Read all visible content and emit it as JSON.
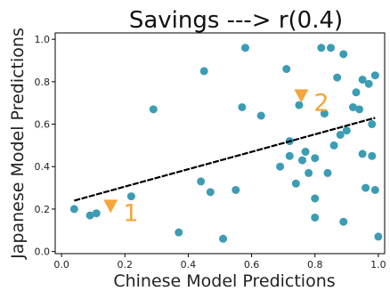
{
  "chart_data": {
    "type": "scatter",
    "title": "Savings ---> r(0.4)",
    "xlabel": "Chinese Model Predictions",
    "ylabel": "Japanese Model Predictions",
    "xlim": [
      -0.02,
      1.02
    ],
    "ylim": [
      -0.01,
      1.03
    ],
    "xticks": [
      "0.0",
      "0.2",
      "0.4",
      "0.6",
      "0.8",
      "1.0"
    ],
    "yticks": [
      "0.0",
      "0.2",
      "0.4",
      "0.6",
      "0.8",
      "1.0"
    ],
    "grid": false,
    "point_color": "#3c9cb4",
    "trend_color": "#000000",
    "annotation_color": "#f5a53a",
    "points": [
      [
        0.04,
        0.2
      ],
      [
        0.09,
        0.17
      ],
      [
        0.11,
        0.18
      ],
      [
        0.22,
        0.26
      ],
      [
        0.29,
        0.67
      ],
      [
        0.37,
        0.09
      ],
      [
        0.44,
        0.33
      ],
      [
        0.45,
        0.85
      ],
      [
        0.47,
        0.28
      ],
      [
        0.51,
        0.06
      ],
      [
        0.55,
        0.29
      ],
      [
        0.57,
        0.68
      ],
      [
        0.58,
        0.96
      ],
      [
        0.63,
        0.64
      ],
      [
        0.69,
        0.4
      ],
      [
        0.71,
        0.86
      ],
      [
        0.72,
        0.52
      ],
      [
        0.72,
        0.45
      ],
      [
        0.74,
        0.32
      ],
      [
        0.75,
        0.69
      ],
      [
        0.76,
        0.43
      ],
      [
        0.77,
        0.47
      ],
      [
        0.78,
        0.37
      ],
      [
        0.8,
        0.25
      ],
      [
        0.8,
        0.16
      ],
      [
        0.8,
        0.44
      ],
      [
        0.82,
        0.96
      ],
      [
        0.83,
        0.65
      ],
      [
        0.84,
        0.37
      ],
      [
        0.85,
        0.96
      ],
      [
        0.86,
        0.5
      ],
      [
        0.87,
        0.82
      ],
      [
        0.88,
        0.55
      ],
      [
        0.89,
        0.14
      ],
      [
        0.89,
        0.93
      ],
      [
        0.9,
        0.57
      ],
      [
        0.92,
        0.68
      ],
      [
        0.93,
        0.75
      ],
      [
        0.94,
        0.67
      ],
      [
        0.95,
        0.81
      ],
      [
        0.95,
        0.46
      ],
      [
        0.96,
        0.3
      ],
      [
        0.97,
        0.79
      ],
      [
        0.98,
        0.45
      ],
      [
        0.98,
        0.6
      ],
      [
        0.99,
        0.29
      ],
      [
        0.99,
        0.83
      ],
      [
        1.0,
        0.07
      ]
    ],
    "trendline": {
      "x": [
        0.04,
        0.99
      ],
      "y": [
        0.24,
        0.63
      ]
    },
    "annotations": [
      {
        "label": "1",
        "x": 0.155,
        "y": 0.215
      },
      {
        "label": "2",
        "x": 0.757,
        "y": 0.735
      }
    ]
  }
}
